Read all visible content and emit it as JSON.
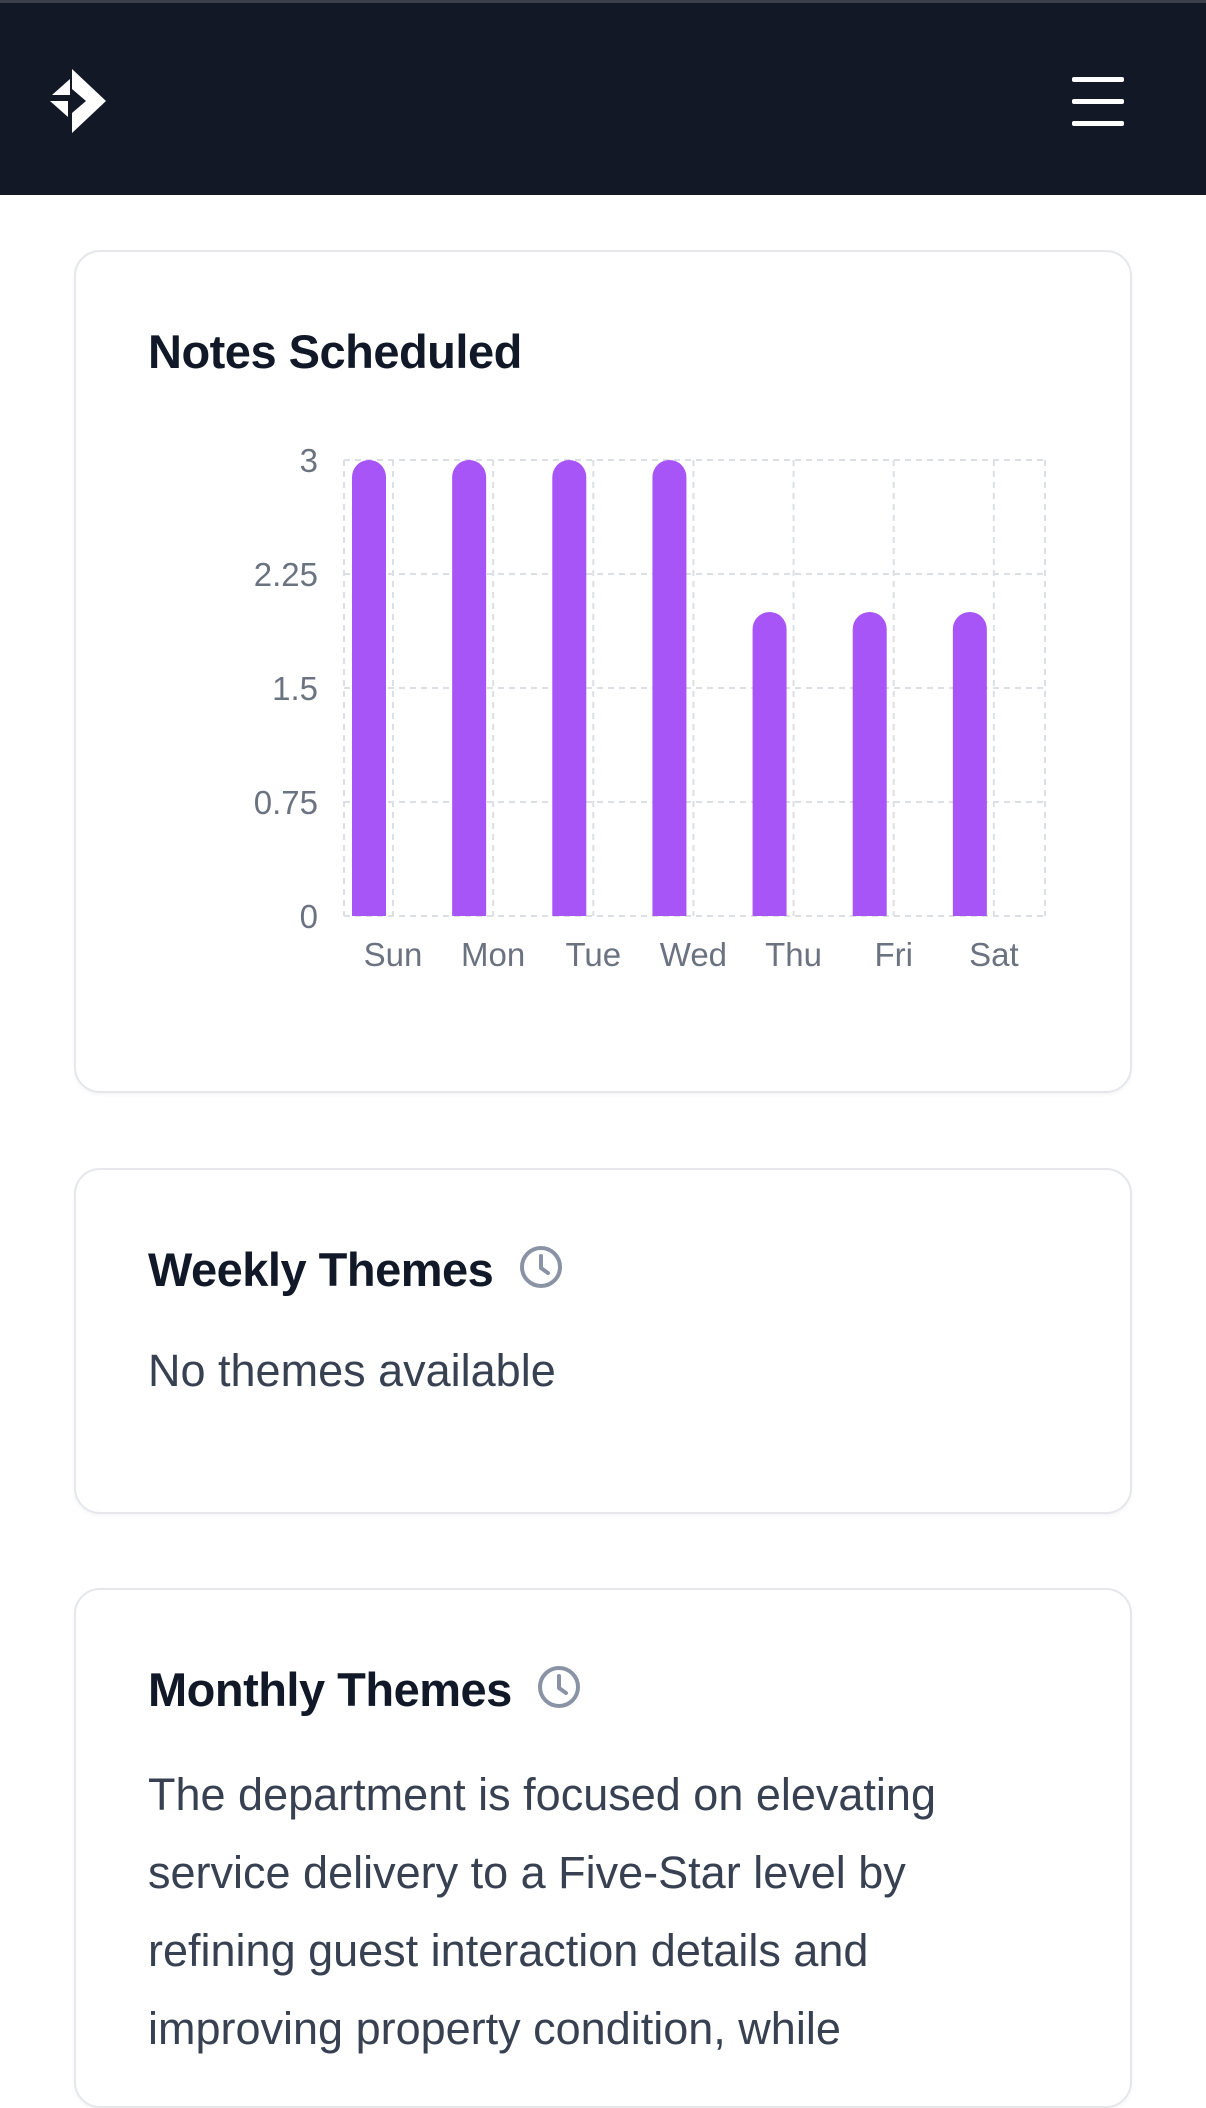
{
  "header": {
    "logo_icon": "brand-logo-icon",
    "menu_icon": "hamburger-menu-icon",
    "background": "#121826"
  },
  "notes_card": {
    "title": "Notes Scheduled"
  },
  "chart_data": {
    "type": "bar",
    "title": "Notes Scheduled",
    "xlabel": "",
    "ylabel": "",
    "categories": [
      "Sun",
      "Mon",
      "Tue",
      "Wed",
      "Thu",
      "Fri",
      "Sat"
    ],
    "values": [
      3,
      3,
      3,
      3,
      2,
      2,
      2
    ],
    "ylim": [
      0,
      3
    ],
    "yticks": [
      "0",
      "0.75",
      "1.5",
      "2.25",
      "3"
    ],
    "grid": true,
    "bar_color": "#a855f7"
  },
  "weekly_card": {
    "title": "Weekly Themes",
    "icon": "clock-icon",
    "text": "No themes available"
  },
  "monthly_card": {
    "title": "Monthly Themes",
    "icon": "clock-icon",
    "text_lines": [
      "The department is focused on elevating",
      "service delivery to a Five-Star level by",
      "refining guest interaction details and",
      "improving property condition, while"
    ]
  }
}
